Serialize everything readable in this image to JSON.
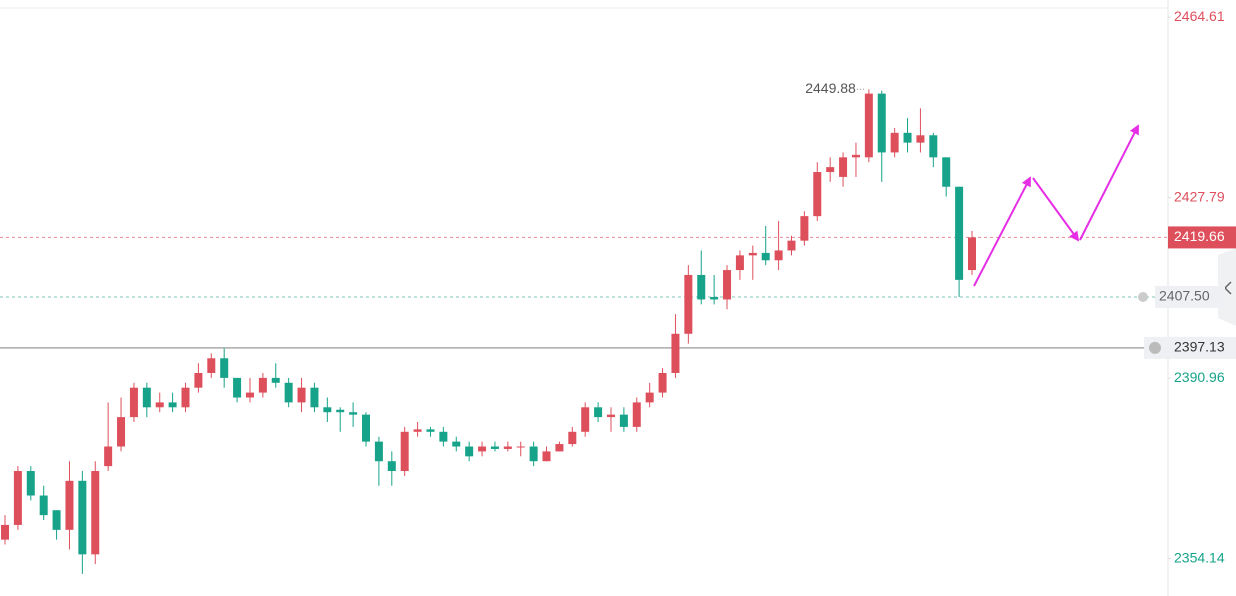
{
  "chart_data": {
    "type": "candlestick",
    "up_color": "#de4f5c",
    "down_color": "#16a38a",
    "ylim": [
      2346.5,
      2468.1
    ],
    "yticks": [
      2354.14,
      2390.96,
      2427.79,
      2464.61
    ],
    "high_annotation": 2449.88,
    "last_price": 2419.66,
    "alert_line": {
      "value": 2407.5,
      "label": "2407.50"
    },
    "reference_line": 2397.13,
    "open": [
      2358,
      2361,
      2372,
      2367,
      2364,
      2360,
      2370,
      2355,
      2373,
      2377,
      2383,
      2389,
      2385,
      2386,
      2385,
      2389,
      2392,
      2395,
      2391,
      2387,
      2388,
      2391,
      2390,
      2386,
      2389,
      2385,
      2384.5,
      2384,
      2383.5,
      2378,
      2374,
      2372,
      2380,
      2380.5,
      2380,
      2378,
      2377,
      2376,
      2377,
      2376.5,
      2376.8,
      2377,
      2374,
      2376,
      2377.5,
      2380,
      2385,
      2383,
      2383.5,
      2381,
      2386,
      2388,
      2392,
      2400,
      2412,
      2407.5,
      2407,
      2413,
      2416,
      2416.5,
      2415,
      2417,
      2419,
      2424,
      2433,
      2432,
      2436,
      2436,
      2449,
      2437,
      2441,
      2439,
      2440.5,
      2436,
      2430,
      2413
    ],
    "high": [
      2363,
      2373,
      2373,
      2369,
      2364,
      2374,
      2372,
      2374,
      2386,
      2387,
      2390,
      2390,
      2388,
      2388,
      2390,
      2394,
      2396,
      2397,
      2391,
      2391,
      2392,
      2394,
      2391,
      2391,
      2390,
      2387,
      2385,
      2386,
      2384,
      2379,
      2376,
      2381,
      2382,
      2381,
      2381,
      2379,
      2378,
      2378,
      2378,
      2378,
      2378,
      2378,
      2377,
      2378,
      2381,
      2386,
      2386,
      2385,
      2385,
      2387,
      2390,
      2393,
      2404,
      2414,
      2417,
      2412,
      2414,
      2417,
      2418,
      2422,
      2423,
      2420,
      2425,
      2435,
      2436,
      2437,
      2439,
      2449.88,
      2449.6,
      2442,
      2444,
      2446,
      2441,
      2436,
      2430,
      2421
    ],
    "low": [
      2357,
      2360,
      2366,
      2362,
      2358,
      2356,
      2351,
      2353,
      2372,
      2376,
      2382,
      2383,
      2384,
      2384,
      2384,
      2388,
      2391,
      2389,
      2386,
      2386,
      2387,
      2389,
      2385,
      2384,
      2384,
      2382,
      2380,
      2381,
      2377,
      2369,
      2369,
      2371,
      2379,
      2379,
      2377,
      2376,
      2374,
      2375,
      2376,
      2376,
      2375,
      2373,
      2374,
      2376,
      2377,
      2379,
      2382,
      2380,
      2380,
      2380,
      2385,
      2387,
      2391,
      2398,
      2406,
      2406,
      2405,
      2411,
      2411,
      2414,
      2413,
      2416,
      2418,
      2423,
      2431,
      2430,
      2432,
      2435,
      2431,
      2436,
      2437,
      2437,
      2434,
      2428,
      2407.5,
      2412
    ],
    "close": [
      2361,
      2372,
      2367,
      2363,
      2360,
      2370,
      2355,
      2372,
      2377,
      2383,
      2389,
      2385,
      2386,
      2385,
      2389,
      2392,
      2395,
      2391,
      2387,
      2388,
      2391,
      2390,
      2386,
      2389,
      2385,
      2384,
      2384,
      2383.5,
      2378,
      2374,
      2372,
      2380,
      2380.5,
      2380,
      2378,
      2377,
      2375,
      2377,
      2376.5,
      2377,
      2377,
      2374,
      2376,
      2377.5,
      2380,
      2385,
      2383,
      2383.5,
      2381,
      2386,
      2388,
      2392,
      2400,
      2412,
      2407,
      2407,
      2413,
      2416,
      2416.5,
      2415,
      2417,
      2419,
      2424,
      2433,
      2434,
      2436,
      2436.5,
      2449,
      2437,
      2441,
      2439,
      2440.5,
      2436,
      2430,
      2411,
      2419.66
    ]
  }
}
